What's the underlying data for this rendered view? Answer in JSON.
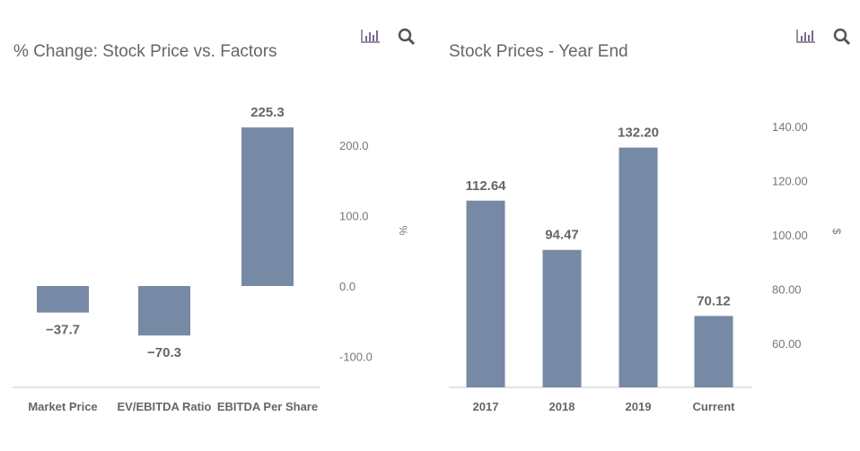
{
  "colors": {
    "bar": "#7689a5",
    "text": "#666666",
    "axis": "#dcdcdc"
  },
  "chart_data": [
    {
      "type": "bar",
      "title": "% Change: Stock Price vs. Factors",
      "categories": [
        "Market Price",
        "EV/EBITDA Ratio",
        "EBITDA Per Share"
      ],
      "values": [
        -37.7,
        -70.3,
        225.3
      ],
      "value_labels": [
        "−37.7",
        "−70.3",
        "225.3"
      ],
      "xlabel": "",
      "ylabel": "%",
      "yticks": [
        "200.0",
        "100.0",
        "0.0",
        "-100.0"
      ],
      "ytick_values": [
        200,
        100,
        0,
        -100
      ],
      "ylim": [
        -145,
        255
      ],
      "grid": false,
      "y_axis_side": "right"
    },
    {
      "type": "bar",
      "title": "Stock Prices - Year End",
      "categories": [
        "2017",
        "2018",
        "2019",
        "Current"
      ],
      "values": [
        112.64,
        94.47,
        132.2,
        70.12
      ],
      "value_labels": [
        "112.64",
        "94.47",
        "132.20",
        "70.12"
      ],
      "xlabel": "",
      "ylabel": "$",
      "yticks": [
        "140.00",
        "120.00",
        "100.00",
        "80.00",
        "60.00"
      ],
      "ytick_values": [
        140,
        120,
        100,
        80,
        60
      ],
      "ylim": [
        43.6,
        160
      ],
      "grid": false,
      "y_axis_side": "right"
    }
  ],
  "toolbar": {
    "chart_icon": "bar-chart-icon",
    "zoom_icon": "search-icon"
  }
}
